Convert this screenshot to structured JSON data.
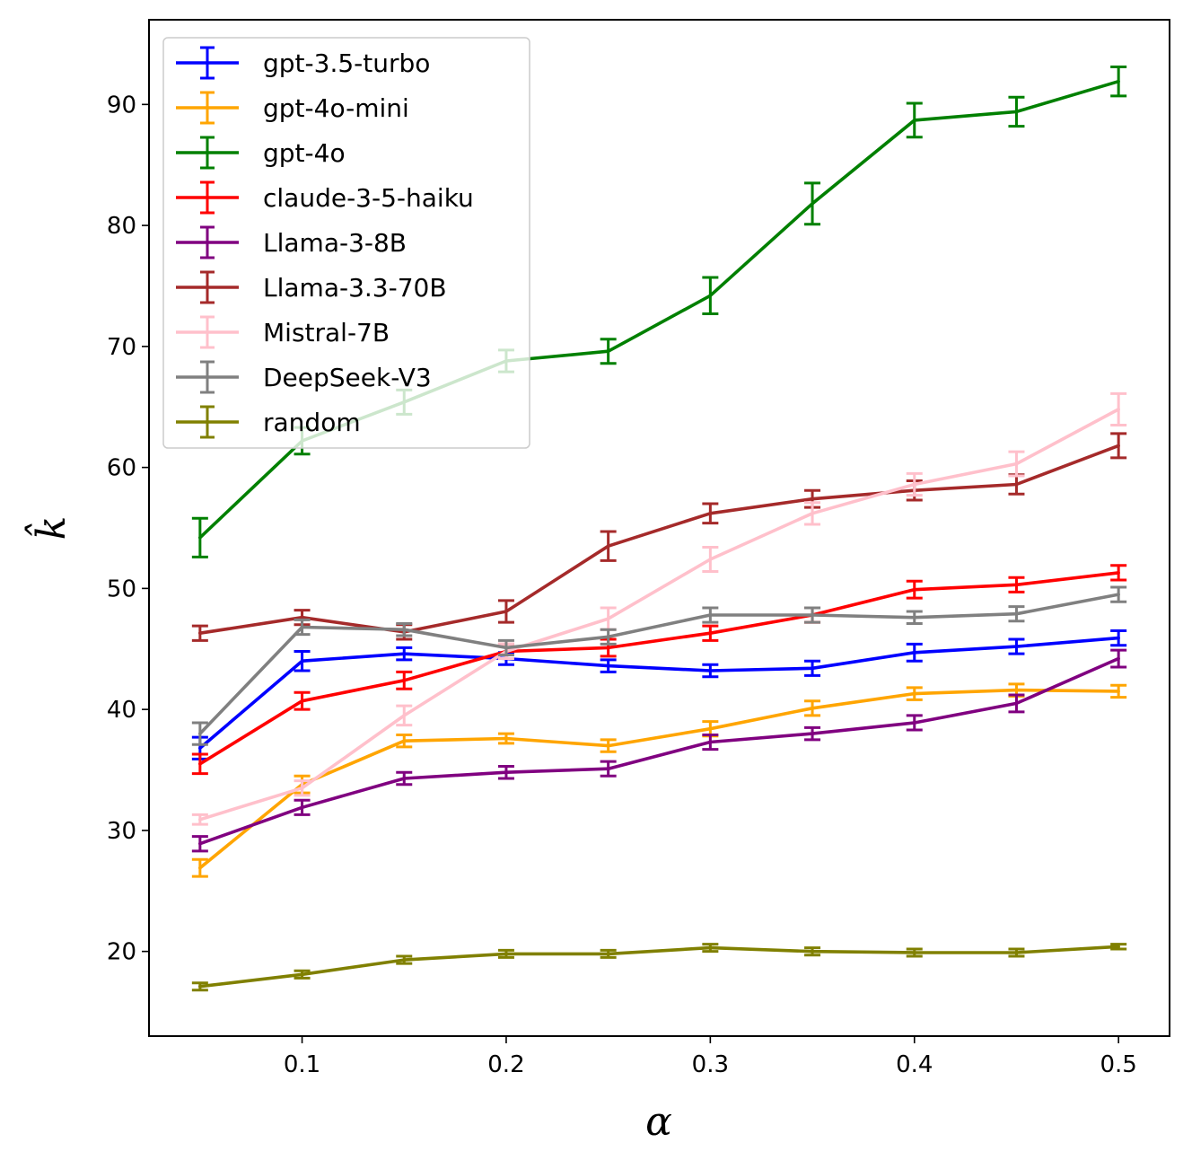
{
  "chart_data": {
    "type": "line",
    "title": "",
    "xlabel": "α",
    "ylabel": "k̂",
    "xlim": [
      0.025,
      0.525
    ],
    "ylim": [
      13,
      97
    ],
    "xticks": [
      0.1,
      0.2,
      0.3,
      0.4,
      0.5
    ],
    "xtick_labels": [
      "0.1",
      "0.2",
      "0.3",
      "0.4",
      "0.5"
    ],
    "yticks": [
      20,
      30,
      40,
      50,
      60,
      70,
      80,
      90
    ],
    "ytick_labels": [
      "20",
      "30",
      "40",
      "50",
      "60",
      "70",
      "80",
      "90"
    ],
    "grid": false,
    "legend_position": "top-left",
    "x": [
      0.05,
      0.1,
      0.15,
      0.2,
      0.25,
      0.3,
      0.35,
      0.4,
      0.45,
      0.5
    ],
    "series": [
      {
        "name": "gpt-3.5-turbo",
        "color": "#0000ff",
        "values": [
          36.8,
          44.0,
          44.6,
          44.2,
          43.6,
          43.2,
          43.4,
          44.7,
          45.2,
          45.9
        ],
        "errors": [
          0.9,
          0.8,
          0.5,
          0.5,
          0.5,
          0.5,
          0.6,
          0.7,
          0.6,
          0.6
        ]
      },
      {
        "name": "gpt-4o-mini",
        "color": "#ffa500",
        "values": [
          26.9,
          33.8,
          37.4,
          37.6,
          37.0,
          38.4,
          40.1,
          41.3,
          41.6,
          41.5
        ],
        "errors": [
          0.7,
          0.7,
          0.5,
          0.4,
          0.5,
          0.6,
          0.6,
          0.5,
          0.5,
          0.5
        ]
      },
      {
        "name": "gpt-4o",
        "color": "#008000",
        "values": [
          54.2,
          62.2,
          65.4,
          68.8,
          69.6,
          74.2,
          81.8,
          88.7,
          89.4,
          91.9
        ],
        "errors": [
          1.6,
          1.1,
          1.0,
          0.9,
          1.0,
          1.5,
          1.7,
          1.4,
          1.2,
          1.2
        ]
      },
      {
        "name": "claude-3-5-haiku",
        "color": "#ff0000",
        "values": [
          35.5,
          40.7,
          42.4,
          44.8,
          45.1,
          46.3,
          47.8,
          49.9,
          50.3,
          51.3
        ],
        "errors": [
          0.8,
          0.7,
          0.7,
          0.6,
          0.7,
          0.6,
          0.6,
          0.7,
          0.6,
          0.6
        ]
      },
      {
        "name": "Llama-3-8B",
        "color": "#800080",
        "values": [
          28.9,
          31.9,
          34.3,
          34.8,
          35.1,
          37.3,
          38.0,
          38.9,
          40.5,
          44.2
        ],
        "errors": [
          0.6,
          0.6,
          0.5,
          0.5,
          0.6,
          0.6,
          0.5,
          0.6,
          0.7,
          0.7
        ]
      },
      {
        "name": "Llama-3.3-70B",
        "color": "#a52a2a",
        "values": [
          46.3,
          47.6,
          46.4,
          48.1,
          53.5,
          56.2,
          57.4,
          58.1,
          58.6,
          61.8
        ],
        "errors": [
          0.6,
          0.6,
          0.6,
          0.9,
          1.2,
          0.8,
          0.7,
          0.8,
          0.8,
          1.0
        ]
      },
      {
        "name": "Mistral-7B",
        "color": "#ffc0cb",
        "values": [
          30.9,
          33.5,
          39.5,
          44.8,
          47.5,
          52.4,
          56.2,
          58.6,
          60.3,
          64.8
        ],
        "errors": [
          0.4,
          0.6,
          0.8,
          0.6,
          0.9,
          1.0,
          0.9,
          0.9,
          1.0,
          1.3
        ]
      },
      {
        "name": "DeepSeek-V3",
        "color": "#808080",
        "values": [
          38.0,
          46.8,
          46.6,
          45.1,
          46.0,
          47.8,
          47.8,
          47.6,
          47.9,
          49.5
        ],
        "errors": [
          0.9,
          0.6,
          0.5,
          0.6,
          0.6,
          0.6,
          0.6,
          0.5,
          0.6,
          0.6
        ]
      },
      {
        "name": "random",
        "color": "#808000",
        "values": [
          17.1,
          18.1,
          19.3,
          19.8,
          19.8,
          20.3,
          20.0,
          19.9,
          19.9,
          20.4
        ],
        "errors": [
          0.3,
          0.3,
          0.3,
          0.3,
          0.3,
          0.3,
          0.3,
          0.3,
          0.3,
          0.2
        ]
      }
    ]
  }
}
